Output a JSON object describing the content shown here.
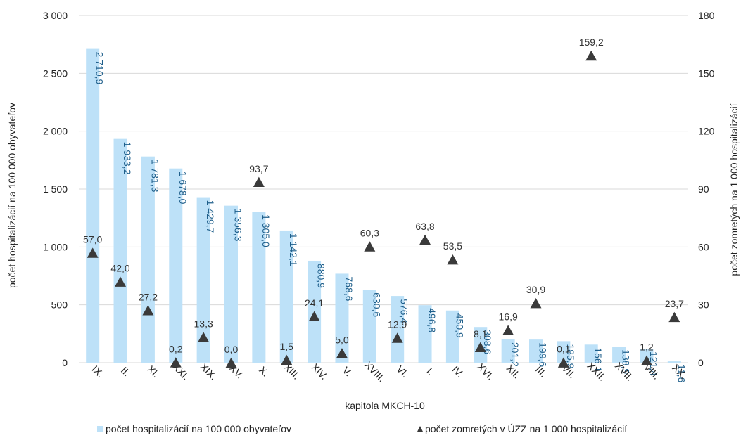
{
  "chart_data": {
    "type": "bar",
    "xlabel": "kapitola MKCH-10",
    "ylabel": "počet hospitalizácií na 100 000 obyvateľov",
    "y2label": "počet zomretých na 1 000 hospitalizácií",
    "ylim": [
      0,
      3000
    ],
    "y2lim": [
      0,
      180
    ],
    "yticks": [
      "0",
      "500",
      "1 000",
      "1 500",
      "2 000",
      "2 500",
      "3 000"
    ],
    "y2ticks": [
      "0",
      "30",
      "60",
      "90",
      "120",
      "150",
      "180"
    ],
    "grid": true,
    "legend_position": "bottom",
    "categories": [
      "IX.",
      "II.",
      "XI.",
      "XXI.",
      "XIX.",
      "XV.",
      "X.",
      "XIII.",
      "XIV.",
      "V.",
      "XVIII.",
      "VI.",
      "I.",
      "IV.",
      "XVI.",
      "XII.",
      "III.",
      "VII.",
      "XXII.",
      "XVII.",
      "VIII.",
      "XX."
    ],
    "series": [
      {
        "name": "počet hospitalizácií na 100 000 obyvateľov",
        "type": "bar",
        "axis": "left",
        "color": "#bde1f8",
        "label_color": "#1f5f8b",
        "values": [
          2710.9,
          1933.2,
          1781.3,
          1678.0,
          1429.7,
          1356.3,
          1305.0,
          1142.1,
          880.9,
          768.6,
          630.6,
          576.4,
          496.8,
          450.9,
          308.6,
          201.2,
          199.6,
          185.9,
          156.1,
          138.9,
          121.4,
          11.6
        ],
        "labels": [
          "2 710,9",
          "1 933,2",
          "1 781,3",
          "1 678,0",
          "1 429,7",
          "1 356,3",
          "1 305,0",
          "1 142,1",
          "880,9",
          "768,6",
          "630,6",
          "576,4",
          "496,8",
          "450,9",
          "308,6",
          "201,2",
          "199,6",
          "185,9",
          "156,1",
          "138,9",
          "121,4",
          "11,6"
        ]
      },
      {
        "name": "počet zomretých v ÚZZ na 1 000 hospitalizácií",
        "type": "scatter",
        "marker": "triangle",
        "axis": "right",
        "color": "#3a3a3a",
        "values": [
          57.0,
          42.0,
          27.2,
          0.2,
          13.3,
          0.0,
          93.7,
          1.5,
          24.1,
          5.0,
          60.3,
          12.9,
          63.8,
          53.5,
          8.1,
          16.9,
          30.9,
          0.1,
          159.2,
          null,
          1.2,
          23.7
        ],
        "labels": [
          "57,0",
          "42,0",
          "27,2",
          "0,2",
          "13,3",
          "0,0",
          "93,7",
          "1,5",
          "24,1",
          "5,0",
          "60,3",
          "12,9",
          "63,8",
          "53,5",
          "8,1",
          "16,9",
          "30,9",
          "0,1",
          "159,2",
          "",
          "1,2",
          "23,7"
        ]
      }
    ]
  }
}
